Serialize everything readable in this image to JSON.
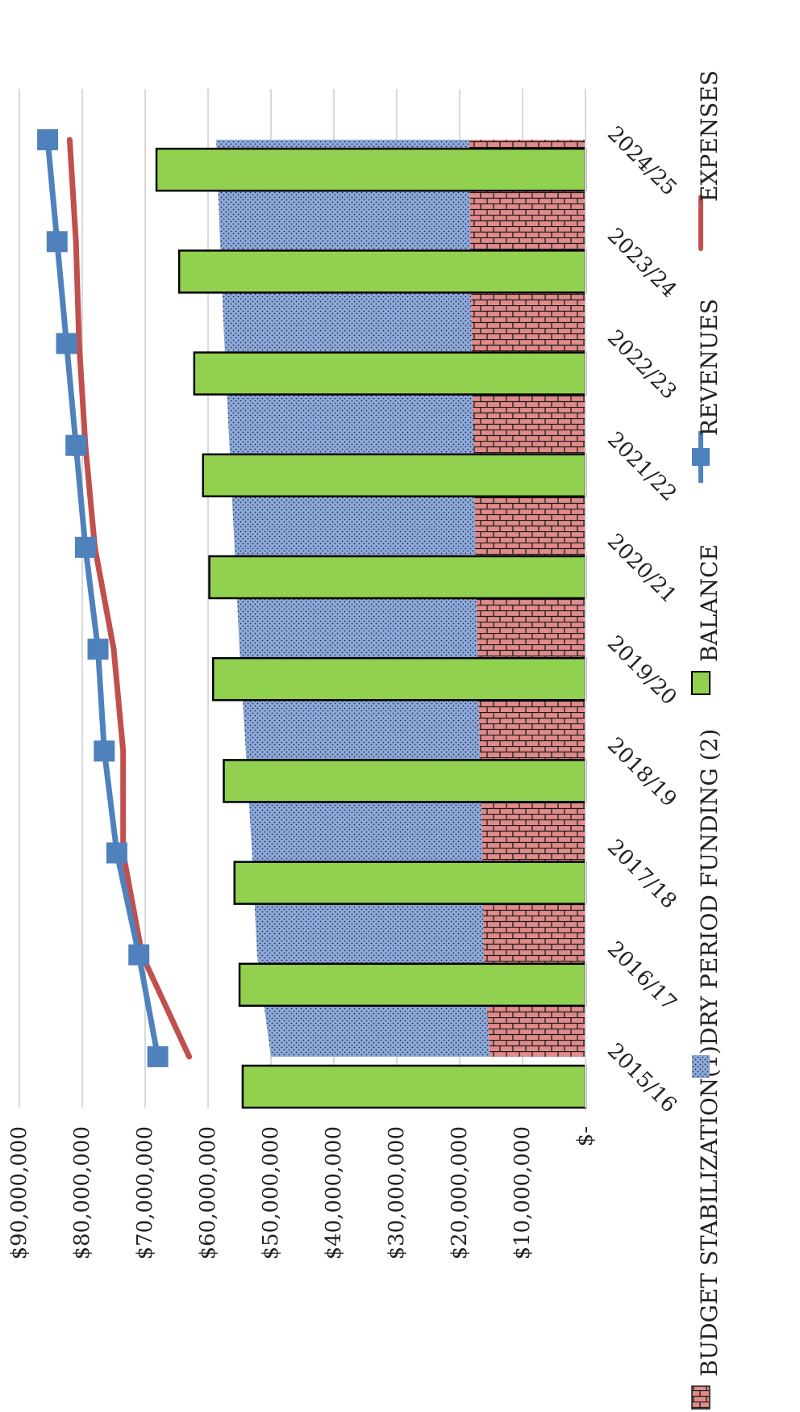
{
  "chart_data": {
    "type": "bar",
    "categories": [
      "2015/16",
      "2016/17",
      "2017/18",
      "2018/19",
      "2019/20",
      "2020/21",
      "2021/22",
      "2022/23",
      "2023/24",
      "2024/25"
    ],
    "series": [
      {
        "name": "BUDGET STABILIZATION(1)",
        "kind": "stacked-area",
        "color": "#E08A8A",
        "values": [
          15200000,
          16200000,
          16400000,
          16800000,
          17200000,
          17500000,
          17800000,
          18100000,
          18300000,
          18500000
        ]
      },
      {
        "name": "DRY PERIOD FUNDING (2)",
        "kind": "stacked-area",
        "color": "#8EAADB",
        "values": [
          34800000,
          36000000,
          36600000,
          37200000,
          37800000,
          38300000,
          38800000,
          39300000,
          39800000,
          40200000
        ]
      },
      {
        "name": "BALANCE",
        "kind": "bar",
        "color": "#92D050",
        "values": [
          54500000,
          55000000,
          55800000,
          57500000,
          59200000,
          59800000,
          60800000,
          62200000,
          64600000,
          68200000
        ]
      },
      {
        "name": "REVENUES",
        "kind": "line-marker",
        "color": "#4F81BD",
        "values": [
          68000000,
          71000000,
          74500000,
          76500000,
          77500000,
          79500000,
          81000000,
          82500000,
          84000000,
          85500000
        ]
      },
      {
        "name": "EXPENSES",
        "kind": "line",
        "color": "#C0504D",
        "values": [
          63000000,
          70500000,
          73500000,
          73500000,
          75000000,
          78000000,
          79500000,
          80500000,
          81000000,
          82000000
        ]
      }
    ],
    "y_ticks": [
      "$-",
      "$10,000,000",
      "$20,000,000",
      "$30,000,000",
      "$40,000,000",
      "$50,000,000",
      "$60,000,000",
      "$70,000,000",
      "$80,000,000",
      "$90,000,000"
    ],
    "ylim": [
      0,
      90000000
    ],
    "grid": true,
    "legend_position": "bottom",
    "orientation": "rotated-90-clockwise"
  }
}
